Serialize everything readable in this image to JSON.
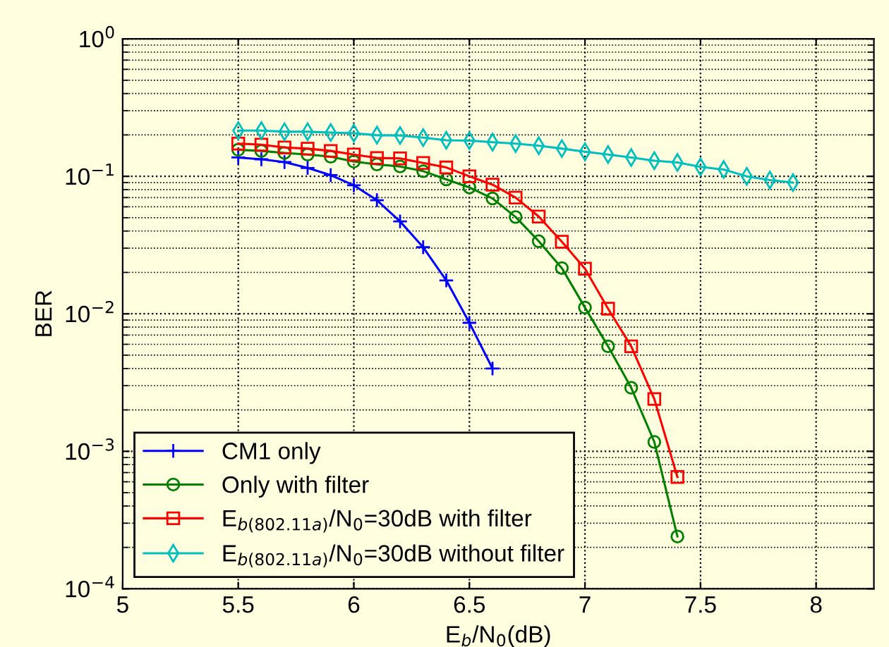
{
  "chart_data": {
    "type": "line",
    "xlabel": "E$_{b}$/N$_{0}$(dB)",
    "ylabel": "BER",
    "log": "y",
    "grid": true,
    "legend": "bottom left",
    "line_style": "solid",
    "xlim": [
      5,
      8.25
    ],
    "xticks": [
      5,
      5.5,
      6,
      6.5,
      7,
      7.5,
      8
    ],
    "ylim": [
      0.0001,
      1
    ],
    "yticks": [
      {
        "value": 0.0001,
        "label": "10$^{−4}$"
      },
      {
        "value": 0.001,
        "label": "10$^{−3}$"
      },
      {
        "value": 0.01,
        "label": "10$^{−2}$"
      },
      {
        "value": 0.1,
        "label": "10$^{−1}$"
      },
      {
        "value": 1,
        "label": "10$^{0}$"
      }
    ],
    "series": [
      {
        "name": "CM1 only",
        "color": "#0000ff",
        "marker": "cross",
        "x": [
          5.5,
          5.6,
          5.7,
          5.8,
          5.9,
          6.0,
          6.1,
          6.2,
          6.3,
          6.4,
          6.5,
          6.6
        ],
        "values": [
          0.137,
          0.133,
          0.127,
          0.115,
          0.102,
          0.086,
          0.067,
          0.047,
          0.0305,
          0.0175,
          0.0086,
          0.004
        ]
      },
      {
        "name": "Only with filter",
        "color": "#008000",
        "marker": "circle",
        "x": [
          5.5,
          5.6,
          5.7,
          5.8,
          5.9,
          6.0,
          6.1,
          6.2,
          6.3,
          6.4,
          6.5,
          6.6,
          6.7,
          6.8,
          6.9,
          7.0,
          7.1,
          7.2,
          7.3,
          7.4
        ],
        "values": [
          0.156,
          0.153,
          0.148,
          0.144,
          0.139,
          0.128,
          0.122,
          0.118,
          0.109,
          0.095,
          0.083,
          0.069,
          0.0506,
          0.0337,
          0.0215,
          0.0111,
          0.0058,
          0.0029,
          0.00117,
          0.00024
        ]
      },
      {
        "name": "E$_{b(802.11a)}$/N$_{0}$=30dB with filter",
        "color": "#ff0000",
        "marker": "square",
        "x": [
          5.5,
          5.6,
          5.7,
          5.8,
          5.9,
          6.0,
          6.1,
          6.2,
          6.3,
          6.4,
          6.5,
          6.6,
          6.7,
          6.8,
          6.9,
          7.0,
          7.1,
          7.2,
          7.3,
          7.4
        ],
        "values": [
          0.173,
          0.17,
          0.162,
          0.159,
          0.153,
          0.144,
          0.136,
          0.135,
          0.125,
          0.116,
          0.1,
          0.087,
          0.07,
          0.051,
          0.0334,
          0.0213,
          0.0109,
          0.0058,
          0.0024,
          0.00065
        ]
      },
      {
        "name": "E$_{b(802.11a)}$/N$_{0}$=30dB without filter",
        "color": "#00bfbf",
        "marker": "diamond",
        "x": [
          5.5,
          5.6,
          5.7,
          5.8,
          5.9,
          6.0,
          6.1,
          6.2,
          6.3,
          6.4,
          6.5,
          6.6,
          6.7,
          6.8,
          6.9,
          7.0,
          7.1,
          7.2,
          7.3,
          7.4,
          7.5,
          7.6,
          7.7,
          7.8,
          7.9
        ],
        "values": [
          0.215,
          0.215,
          0.211,
          0.211,
          0.208,
          0.206,
          0.199,
          0.198,
          0.191,
          0.183,
          0.182,
          0.177,
          0.173,
          0.167,
          0.159,
          0.151,
          0.144,
          0.137,
          0.13,
          0.126,
          0.117,
          0.112,
          0.1,
          0.094,
          0.09
        ]
      }
    ]
  }
}
